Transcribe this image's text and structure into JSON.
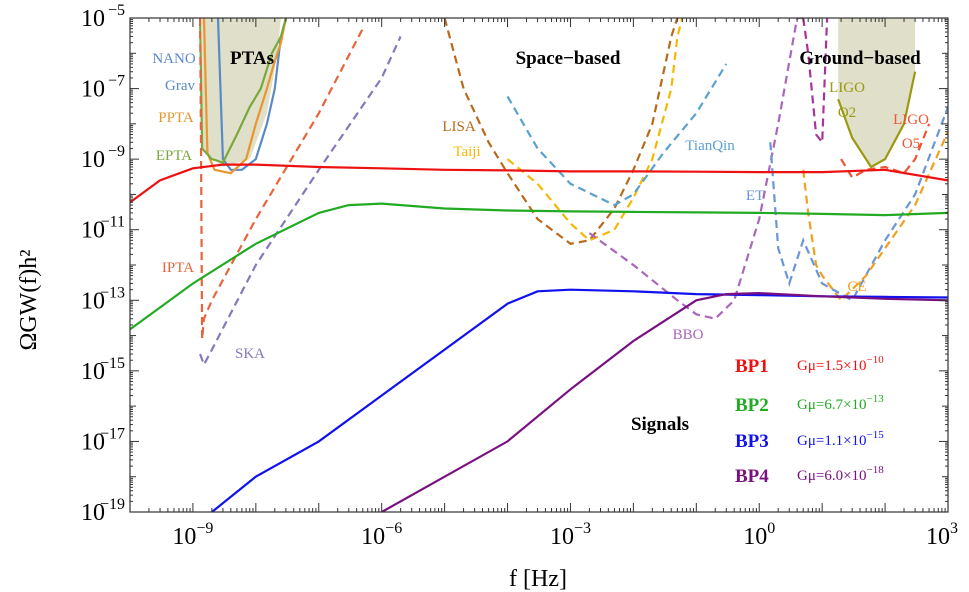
{
  "chart_data": {
    "type": "line",
    "title": "",
    "xlabel": "f [Hz]",
    "ylabel": "ΩGW(f)h²",
    "x_scale": "log",
    "y_scale": "log",
    "xlim": [
      1e-10,
      1000
    ],
    "ylim": [
      1e-19,
      1e-05
    ],
    "grid": false,
    "x_ticks": [
      {
        "value": 1e-09,
        "base": "10",
        "exp": "−9"
      },
      {
        "value": 1e-06,
        "base": "10",
        "exp": "−6"
      },
      {
        "value": 0.001,
        "base": "10",
        "exp": "−3"
      },
      {
        "value": 1,
        "base": "10",
        "exp": "0"
      },
      {
        "value": 1000,
        "base": "10",
        "exp": "3"
      }
    ],
    "y_ticks": [
      {
        "value": 1e-05,
        "base": "10",
        "exp": "−5"
      },
      {
        "value": 1e-07,
        "base": "10",
        "exp": "−7"
      },
      {
        "value": 1e-09,
        "base": "10",
        "exp": "−9"
      },
      {
        "value": 1e-11,
        "base": "10",
        "exp": "−11"
      },
      {
        "value": 1e-13,
        "base": "10",
        "exp": "−13"
      },
      {
        "value": 1e-15,
        "base": "10",
        "exp": "−15"
      },
      {
        "value": 1e-17,
        "base": "10",
        "exp": "−17"
      },
      {
        "value": 1e-19,
        "base": "10",
        "exp": "−19"
      }
    ],
    "regions": [
      {
        "name": "PTAs",
        "color": "#dcdcc4"
      },
      {
        "name": "Space−based",
        "color": ""
      },
      {
        "name": "Ground−based",
        "color": "#dcdcc4"
      },
      {
        "name": "Signals",
        "color": ""
      }
    ],
    "series": [
      {
        "name": "BP1",
        "label": "Gμ=1.5×10",
        "exp": "−10",
        "color": "#ee1111",
        "style": "solid",
        "x": [
          1e-10,
          3e-10,
          1e-09,
          3e-09,
          1e-08,
          1e-07,
          1e-06,
          1e-05,
          0.0001,
          0.001,
          0.01,
          0.1,
          1,
          10,
          100,
          1000
        ],
        "y": [
          6e-11,
          2.5e-10,
          5.5e-10,
          7e-10,
          7e-10,
          6e-10,
          5.5e-10,
          5e-10,
          4.8e-10,
          4.5e-10,
          4.5e-10,
          4.4e-10,
          4.3e-10,
          4.3e-10,
          5e-10,
          2.5e-10
        ]
      },
      {
        "name": "BP2",
        "label": "Gμ=6.7×10",
        "exp": "−13",
        "color": "#22aa22",
        "style": "solid",
        "x": [
          1e-10,
          1e-09,
          1e-08,
          1e-07,
          3e-07,
          1e-06,
          1e-05,
          0.0001,
          0.001,
          0.01,
          0.1,
          1,
          10,
          100,
          1000
        ],
        "y": [
          1.5e-14,
          3e-13,
          4e-12,
          3e-11,
          5e-11,
          5.5e-11,
          4e-11,
          3.5e-11,
          3.3e-11,
          3.2e-11,
          3.1e-11,
          3e-11,
          2.8e-11,
          2.6e-11,
          3e-11
        ]
      },
      {
        "name": "BP3",
        "label": "Gμ=1.1×10",
        "exp": "−15",
        "color": "#1111ee",
        "style": "solid",
        "x": [
          2e-09,
          1e-08,
          1e-07,
          1e-06,
          1e-05,
          0.0001,
          0.0003,
          0.001,
          0.01,
          0.1,
          1,
          10,
          100,
          1000
        ],
        "y": [
          1e-19,
          1e-18,
          1e-17,
          2e-16,
          4e-15,
          8e-14,
          1.8e-13,
          2e-13,
          1.8e-13,
          1.5e-13,
          1.4e-13,
          1.3e-13,
          1.25e-13,
          1.2e-13
        ]
      },
      {
        "name": "BP4",
        "label": "Gμ=6.0×10",
        "exp": "−18",
        "color": "#7a1080",
        "style": "solid",
        "x": [
          1e-06,
          1e-05,
          0.0001,
          0.001,
          0.01,
          0.1,
          0.3,
          1,
          10,
          100,
          1000
        ],
        "y": [
          1e-19,
          1e-18,
          1e-17,
          3e-16,
          7e-15,
          1e-13,
          1.5e-13,
          1.6e-13,
          1.3e-13,
          1.1e-13,
          1e-13
        ]
      }
    ],
    "sensitivity_curves": [
      {
        "name": "NANO Grav",
        "color": "#5a8ac6",
        "style": "solid",
        "x": [
          2.5e-09,
          3e-09,
          4e-09,
          6e-09,
          1e-08,
          1.5e-08,
          2e-08,
          2.5e-08
        ],
        "y": [
          1e-05,
          1e-09,
          5e-10,
          5e-10,
          1e-09,
          1e-08,
          1e-07,
          3e-06
        ]
      },
      {
        "name": "PPTA",
        "color": "#e8962e",
        "style": "solid",
        "x": [
          1.5e-09,
          1.7e-09,
          2.2e-09,
          4e-09,
          7e-09,
          1e-08,
          1.5e-08,
          2e-08,
          2.5e-08,
          3e-08
        ],
        "y": [
          1e-05,
          1.5e-09,
          5e-10,
          4e-10,
          1e-09,
          1e-08,
          1e-07,
          6e-07,
          2e-06,
          1e-05
        ]
      },
      {
        "name": "EPTA",
        "color": "#7aa83c",
        "style": "solid",
        "x": [
          1.3e-09,
          1.4e-09,
          2e-09,
          3e-09,
          5e-09,
          8e-09,
          1.2e-08,
          1.8e-08,
          2.5e-08,
          3e-08
        ],
        "y": [
          1e-05,
          2e-09,
          1e-09,
          8e-10,
          5e-09,
          3e-08,
          1e-07,
          1e-06,
          3e-06,
          1e-05
        ]
      },
      {
        "name": "IPTA",
        "color": "#e8643c",
        "style": "dashed",
        "x": [
          1.3e-09,
          1.35e-09,
          1.4e-09,
          1.5e-09,
          2e-09,
          1e-08,
          1e-07,
          5e-07
        ],
        "y": [
          1e-05,
          1e-09,
          8e-15,
          3e-14,
          1e-13,
          2e-11,
          2e-08,
          5e-06
        ]
      },
      {
        "name": "SKA",
        "color": "#8877bb",
        "style": "dashed",
        "x": [
          1.3e-09,
          1.5e-09,
          2e-09,
          1e-08,
          1e-07,
          1e-06,
          2e-06
        ],
        "y": [
          3e-15,
          1.5e-15,
          4e-15,
          1e-12,
          5e-10,
          2e-07,
          3e-06
        ]
      },
      {
        "name": "LISA",
        "color": "#b86a1a",
        "style": "dashed",
        "x": [
          1e-05,
          2e-05,
          5e-05,
          0.0001,
          0.0003,
          0.001,
          0.002,
          0.005,
          0.01,
          0.02,
          0.04,
          0.05
        ],
        "y": [
          1e-05,
          1e-07,
          3e-09,
          4e-10,
          2e-11,
          4e-12,
          5e-12,
          4e-11,
          5e-10,
          1e-08,
          3e-06,
          1e-05
        ]
      },
      {
        "name": "Taiji",
        "color": "#f5b800",
        "style": "dashed",
        "x": [
          0.0001,
          0.0003,
          0.001,
          0.002,
          0.005,
          0.01,
          0.02,
          0.04,
          0.05,
          0.06
        ],
        "y": [
          1e-09,
          2e-10,
          1.5e-11,
          5e-12,
          1e-11,
          8e-11,
          1e-09,
          1e-07,
          3e-06,
          1e-05
        ]
      },
      {
        "name": "TianQin",
        "color": "#5aa0d0",
        "style": "dashed",
        "x": [
          0.0001,
          0.0003,
          0.001,
          0.005,
          0.01,
          0.03,
          0.1,
          0.3
        ],
        "y": [
          6e-08,
          2e-09,
          2e-10,
          5e-11,
          1e-10,
          1.5e-09,
          2e-08,
          5e-07
        ]
      },
      {
        "name": "BBO",
        "color": "#aa66bb",
        "style": "dashed",
        "x": [
          0.002,
          0.01,
          0.05,
          0.1,
          0.2,
          0.4,
          1,
          2,
          4,
          5
        ],
        "y": [
          8e-12,
          1e-12,
          1e-13,
          4e-14,
          3e-14,
          1e-13,
          2e-11,
          1e-08,
          1e-05,
          1e-05
        ]
      },
      {
        "name": "LIGO O2",
        "color": "#9a9a10",
        "style": "solid",
        "x": [
          18,
          30,
          60,
          100,
          200,
          300
        ],
        "y": [
          5e-08,
          4e-09,
          6e-10,
          1e-09,
          1e-08,
          3e-07
        ]
      },
      {
        "name": "LIGO O5",
        "color": "#ee5530",
        "style": "dashed",
        "x": [
          20,
          30,
          50,
          100,
          200,
          300,
          500
        ],
        "y": [
          1e-09,
          3e-10,
          5e-10,
          6e-10,
          4e-10,
          1e-09,
          1e-08
        ]
      },
      {
        "name": "ET",
        "color": "#6a95d8",
        "style": "dashed",
        "x": [
          1.5,
          2,
          3,
          5,
          10,
          30,
          100,
          300,
          1000
        ],
        "y": [
          3e-09,
          3e-12,
          3e-13,
          5e-12,
          3e-13,
          1e-13,
          5e-12,
          1e-10,
          3e-08
        ]
      },
      {
        "name": "CE",
        "color": "#f0a020",
        "style": "dashed",
        "x": [
          5,
          6,
          8,
          10,
          20,
          50,
          100,
          300,
          1000
        ],
        "y": [
          5e-10,
          3e-11,
          1e-12,
          5e-13,
          1e-13,
          5e-13,
          3e-12,
          5e-11,
          6e-09
        ]
      },
      {
        "name": "",
        "color": "#aa3399",
        "style": "dashed",
        "x": [
          5,
          6,
          8,
          10,
          12
        ],
        "y": [
          1e-05,
          1e-06,
          5e-09,
          3e-09,
          1e-05
        ]
      }
    ],
    "curve_labels": [
      {
        "text": "NANO",
        "color": "#5a8ac6"
      },
      {
        "text": "Grav",
        "color": "#5a8ac6"
      },
      {
        "text": "PPTA",
        "color": "#e8962e"
      },
      {
        "text": "EPTA",
        "color": "#7aa83c"
      },
      {
        "text": "IPTA",
        "color": "#e8643c"
      },
      {
        "text": "SKA",
        "color": "#8877bb"
      },
      {
        "text": "LISA",
        "color": "#b86a1a"
      },
      {
        "text": "Taiji",
        "color": "#f5b800"
      },
      {
        "text": "TianQin",
        "color": "#5aa0d0"
      },
      {
        "text": "BBO",
        "color": "#aa66bb"
      },
      {
        "text": "ET",
        "color": "#6a95d8"
      },
      {
        "text": "CE",
        "color": "#f0a020"
      },
      {
        "text": "LIGO",
        "color": "#9a9a10"
      },
      {
        "text": "O2",
        "color": "#9a9a10"
      },
      {
        "text": "LIGO",
        "color": "#ee5530"
      },
      {
        "text": "O5",
        "color": "#ee5530"
      }
    ]
  }
}
